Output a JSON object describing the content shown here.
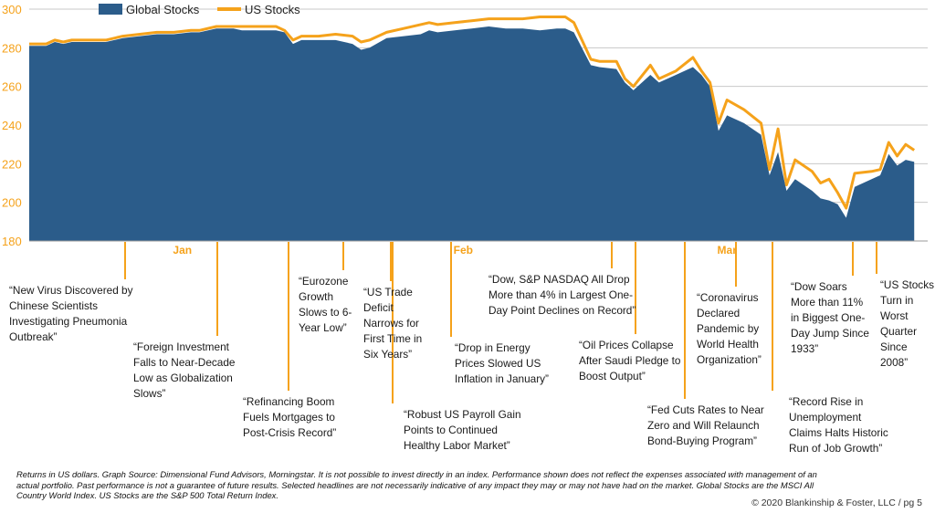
{
  "chart_data": {
    "type": "area",
    "legend_position": "top",
    "legend": [
      "Global Stocks",
      "US Stocks"
    ],
    "ylim": [
      180,
      300
    ],
    "yticks": [
      180,
      200,
      220,
      240,
      260,
      280,
      300
    ],
    "x_range": [
      0,
      100
    ],
    "month_labels": [
      {
        "label": "Jan",
        "x": 18
      },
      {
        "label": "Feb",
        "x": 51
      },
      {
        "label": "Mar",
        "x": 82
      }
    ],
    "grid": true,
    "series": [
      {
        "name": "Global Stocks",
        "color": "#2b5c8a",
        "points": [
          [
            0,
            281
          ],
          [
            2,
            281
          ],
          [
            3,
            283
          ],
          [
            4,
            282
          ],
          [
            5,
            283
          ],
          [
            7,
            283
          ],
          [
            9,
            283
          ],
          [
            11,
            285
          ],
          [
            13,
            286
          ],
          [
            15,
            287
          ],
          [
            17,
            287
          ],
          [
            19,
            288
          ],
          [
            20,
            288
          ],
          [
            22,
            290
          ],
          [
            24,
            290
          ],
          [
            25,
            289
          ],
          [
            27,
            289
          ],
          [
            29,
            289
          ],
          [
            30,
            288
          ],
          [
            31,
            282
          ],
          [
            32,
            284
          ],
          [
            34,
            284
          ],
          [
            36,
            284
          ],
          [
            38,
            282
          ],
          [
            39,
            279
          ],
          [
            40,
            280
          ],
          [
            42,
            285
          ],
          [
            44,
            286
          ],
          [
            46,
            287
          ],
          [
            47,
            289
          ],
          [
            48,
            288
          ],
          [
            50,
            289
          ],
          [
            52,
            290
          ],
          [
            54,
            291
          ],
          [
            56,
            290
          ],
          [
            58,
            290
          ],
          [
            60,
            289
          ],
          [
            62,
            290
          ],
          [
            63,
            290
          ],
          [
            64,
            288
          ],
          [
            66,
            271
          ],
          [
            67,
            270
          ],
          [
            69,
            269
          ],
          [
            70,
            262
          ],
          [
            71,
            258
          ],
          [
            73,
            266
          ],
          [
            74,
            262
          ],
          [
            76,
            266
          ],
          [
            78,
            270
          ],
          [
            79,
            266
          ],
          [
            80,
            260
          ],
          [
            81,
            237
          ],
          [
            82,
            245
          ],
          [
            84,
            241
          ],
          [
            86,
            235
          ],
          [
            87,
            214
          ],
          [
            88,
            226
          ],
          [
            89,
            206
          ],
          [
            90,
            212
          ],
          [
            92,
            206
          ],
          [
            93,
            202
          ],
          [
            94,
            201
          ],
          [
            95,
            199
          ],
          [
            96,
            192
          ],
          [
            97,
            208
          ],
          [
            99,
            212
          ],
          [
            100,
            214
          ],
          [
            101,
            225
          ],
          [
            102,
            219
          ],
          [
            103,
            222
          ],
          [
            104,
            221
          ]
        ]
      },
      {
        "name": "US Stocks",
        "color": "#f5a21b",
        "points": [
          [
            0,
            282
          ],
          [
            2,
            282
          ],
          [
            3,
            284
          ],
          [
            4,
            283
          ],
          [
            5,
            284
          ],
          [
            7,
            284
          ],
          [
            9,
            284
          ],
          [
            11,
            286
          ],
          [
            13,
            287
          ],
          [
            15,
            288
          ],
          [
            17,
            288
          ],
          [
            19,
            289
          ],
          [
            20,
            289
          ],
          [
            22,
            291
          ],
          [
            24,
            291
          ],
          [
            25,
            291
          ],
          [
            27,
            291
          ],
          [
            29,
            291
          ],
          [
            30,
            289
          ],
          [
            31,
            284
          ],
          [
            32,
            286
          ],
          [
            34,
            286
          ],
          [
            36,
            287
          ],
          [
            38,
            286
          ],
          [
            39,
            283
          ],
          [
            40,
            284
          ],
          [
            42,
            288
          ],
          [
            44,
            290
          ],
          [
            46,
            292
          ],
          [
            47,
            293
          ],
          [
            48,
            292
          ],
          [
            50,
            293
          ],
          [
            52,
            294
          ],
          [
            54,
            295
          ],
          [
            56,
            295
          ],
          [
            58,
            295
          ],
          [
            60,
            296
          ],
          [
            62,
            296
          ],
          [
            63,
            296
          ],
          [
            64,
            293
          ],
          [
            66,
            274
          ],
          [
            67,
            273
          ],
          [
            69,
            273
          ],
          [
            70,
            264
          ],
          [
            71,
            260
          ],
          [
            73,
            271
          ],
          [
            74,
            264
          ],
          [
            76,
            268
          ],
          [
            78,
            275
          ],
          [
            79,
            268
          ],
          [
            80,
            262
          ],
          [
            81,
            241
          ],
          [
            82,
            253
          ],
          [
            84,
            248
          ],
          [
            86,
            241
          ],
          [
            87,
            217
          ],
          [
            88,
            238
          ],
          [
            89,
            209
          ],
          [
            90,
            222
          ],
          [
            92,
            216
          ],
          [
            93,
            210
          ],
          [
            94,
            212
          ],
          [
            95,
            205
          ],
          [
            96,
            197
          ],
          [
            97,
            215
          ],
          [
            99,
            216
          ],
          [
            100,
            217
          ],
          [
            101,
            231
          ],
          [
            102,
            224
          ],
          [
            103,
            230
          ],
          [
            104,
            227
          ]
        ]
      }
    ],
    "annotations": [
      {
        "x": 10,
        "lines": [
          "“New Virus Discovered by",
          "Chinese Scientists",
          "Investigating Pneumonia",
          "Outbreak”"
        ]
      },
      {
        "x": 21,
        "lines": [
          "“Foreign Investment",
          "Falls to Near-Decade",
          "Low as Globalization",
          "Slows”"
        ]
      },
      {
        "x": 29,
        "lines": [
          "“Refinancing Boom",
          "Fuels Mortgages to",
          "Post-Crisis Record”"
        ]
      },
      {
        "x": 34.5,
        "lines": [
          "“Eurozone",
          "Growth",
          "Slows to 6-",
          "Year Low”"
        ]
      },
      {
        "x": 39.5,
        "lines": [
          "“US Trade",
          "Deficit",
          "Narrows for",
          "First Time in",
          "Six Years”"
        ]
      },
      {
        "x": 40,
        "lines": [
          "“Robust US Payroll Gain",
          "Points to Continued",
          "Healthy Labor Market”"
        ]
      },
      {
        "x": 46,
        "lines": [
          "“Drop in Energy",
          "Prices Slowed US",
          "Inflation in January”"
        ]
      },
      {
        "x": 62,
        "lines": [
          "“Dow, S&P NASDAQ All Drop",
          "More than 4% in Largest One-",
          "Day Point Declines on Record”"
        ]
      },
      {
        "x": 69.5,
        "lines": [
          "“Oil Prices Collapse",
          "After Saudi Pledge to",
          "Boost Output”"
        ]
      },
      {
        "x": 75,
        "lines": [
          "“Fed Cuts Rates to Near",
          "Zero and Will Relaunch",
          "Bond-Buying Program”"
        ]
      },
      {
        "x": 78,
        "lines": [
          "“Coronavirus",
          "Declared",
          "Pandemic by",
          "World Health",
          "Organization”"
        ]
      },
      {
        "x": 85,
        "lines": [
          "“Dow Soars",
          "More than 11%",
          "in Biggest One-",
          "Day Jump Since",
          "1933”"
        ]
      },
      {
        "x": 87.5,
        "lines": [
          "“Record Rise in",
          "Unemployment",
          "Claims Halts Historic",
          "Run of Job Growth”"
        ]
      },
      {
        "x": 95,
        "lines": [
          "“US Stocks",
          "Turn in",
          "Worst",
          "Quarter",
          "Since",
          "2008”"
        ]
      }
    ]
  },
  "footnote": "Returns in US dollars. Graph Source: Dimensional Fund Advisors, Morningstar. It is not possible to invest directly in an index. Performance shown does not reflect the expenses associated with management of an actual portfolio. Past performance is not a guarantee of future results. Selected headlines are not necessarily indicative of any impact they may or may not have had on the market. Global Stocks are the MSCI All Country World Index. US Stocks are the S&P 500 Total Return Index.",
  "copyright": "© 2020 Blankinship & Foster, LLC / pg 5",
  "colors": {
    "axis_text": "#f5a21b",
    "grid": "#c8c8c8",
    "leader": "#f5a21b"
  }
}
